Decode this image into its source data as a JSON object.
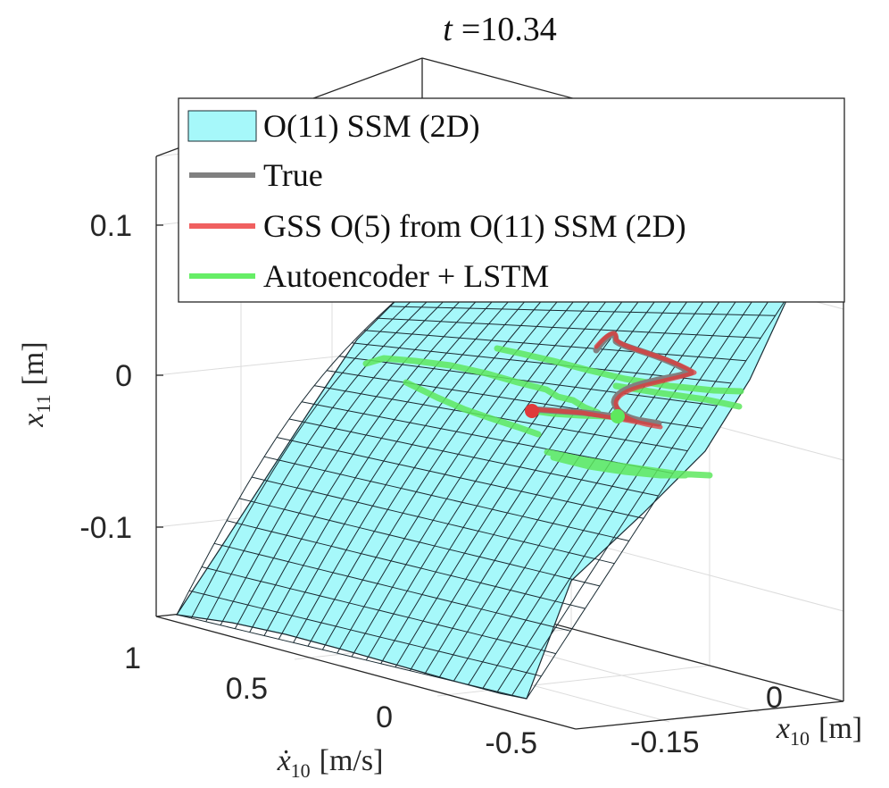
{
  "chart_data": {
    "type": "3d-surface-trajectory",
    "title": "t =10.34",
    "title_variable": "t",
    "title_value": "=10.34",
    "axes": {
      "x": {
        "label_sym": "x",
        "label_sub": "10",
        "label_unit": "[m]",
        "ticks": [
          "-0.15",
          "0"
        ]
      },
      "y": {
        "label_sym": "ẋ",
        "label_sub": "10",
        "label_unit": "[m/s]",
        "ticks": [
          "1",
          "0.5",
          "0",
          "-0.5"
        ]
      },
      "z": {
        "label_sym": "x",
        "label_sub": "11",
        "label_unit": "[m]",
        "ticks": [
          "0.1",
          "0",
          "-0.1"
        ],
        "range": [
          -0.16,
          0.15
        ]
      }
    },
    "grid": true,
    "legend": {
      "position": "top",
      "entries": [
        {
          "label": "O(11) SSM (2D)",
          "color": "#a6f8fa",
          "kind": "patch"
        },
        {
          "label": "True",
          "color": "#808080",
          "kind": "line"
        },
        {
          "label": "GSS O(5) from O(11) SSM (2D)",
          "color": "#f06060",
          "kind": "line"
        },
        {
          "label": "Autoencoder + LSTM",
          "color": "#66ee66",
          "kind": "line"
        }
      ]
    },
    "series": [
      {
        "name": "O(11) SSM (2D)",
        "kind": "surface",
        "color": "#a6f8fa",
        "edge_color": "#1a2b33"
      },
      {
        "name": "True",
        "kind": "trajectory",
        "color": "#808080"
      },
      {
        "name": "GSS O(5) from O(11) SSM (2D)",
        "kind": "trajectory",
        "color": "#e03a3a"
      },
      {
        "name": "Autoencoder + LSTM",
        "kind": "trajectory",
        "color": "#5ee85e"
      }
    ]
  }
}
